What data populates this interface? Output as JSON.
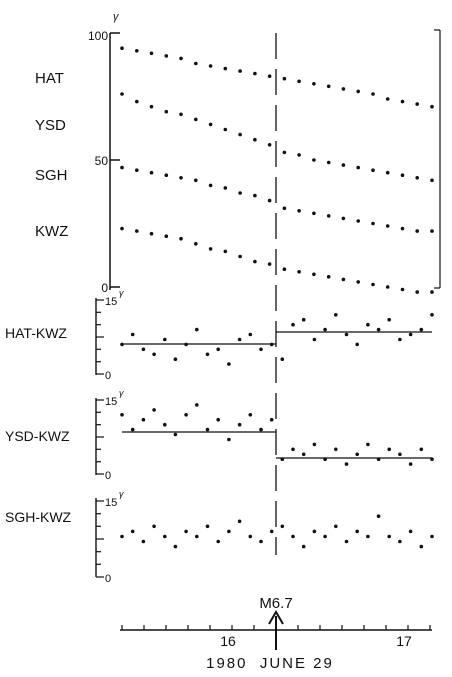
{
  "chart_data": [
    {
      "type": "scatter",
      "panel": "main",
      "ylim": [
        0,
        100
      ],
      "unit": "γ",
      "y_ticks": [
        "0",
        "50",
        "100"
      ],
      "series": [
        {
          "name": "HAT",
          "pre": [
            94,
            91,
            88,
            85
          ],
          "post": [
            82,
            79,
            76,
            72
          ],
          "values": [
            94,
            93,
            92,
            91,
            90,
            88,
            87,
            86,
            85,
            84,
            83,
            82,
            81,
            80,
            79,
            78,
            77,
            76,
            74,
            73,
            72,
            71
          ]
        },
        {
          "name": "YSD",
          "pre": [
            75,
            70,
            64,
            58
          ],
          "post": [
            53,
            49,
            46,
            43
          ],
          "values": [
            76,
            73,
            71,
            69,
            68,
            66,
            64,
            62,
            60,
            58,
            56,
            53,
            52,
            50,
            49,
            48,
            47,
            46,
            45,
            44,
            43,
            42
          ]
        },
        {
          "name": "SGH",
          "pre": [
            47,
            44,
            40,
            36
          ],
          "post": [
            31,
            28,
            25,
            22
          ],
          "values": [
            47,
            46,
            45,
            44,
            43,
            42,
            40,
            39,
            37,
            36,
            34,
            31,
            30,
            29,
            28,
            27,
            26,
            25,
            24,
            23,
            22,
            22
          ]
        },
        {
          "name": "KWZ",
          "pre": [
            23,
            20,
            15,
            10
          ],
          "post": [
            7,
            4,
            1,
            -2
          ],
          "values": [
            23,
            22,
            21,
            20,
            19,
            17,
            15,
            14,
            12,
            10,
            9,
            7,
            6,
            5,
            4,
            3,
            2,
            1,
            0,
            -1,
            -2,
            -2
          ]
        }
      ]
    },
    {
      "type": "scatter",
      "panel": "HAT-KWZ",
      "label": "HAT-KWZ",
      "ylim": [
        0,
        15
      ],
      "y_ticks": [
        "0",
        "15"
      ],
      "unit": "γ",
      "mean_before": 6,
      "mean_after": 8.5,
      "values": [
        6,
        8,
        5,
        4,
        7,
        3,
        6,
        9,
        4,
        5,
        2,
        7,
        8,
        5,
        6,
        3,
        10,
        11,
        7,
        9,
        12,
        8,
        6,
        10,
        9,
        11,
        7,
        8,
        9,
        12
      ]
    },
    {
      "type": "scatter",
      "panel": "YSD-KWZ",
      "label": "YSD-KWZ",
      "ylim": [
        0,
        15
      ],
      "y_ticks": [
        "0",
        "15"
      ],
      "unit": "γ",
      "mean_before": 10,
      "mean_after": 4.5,
      "values": [
        12,
        9,
        11,
        13,
        10,
        8,
        12,
        14,
        9,
        11,
        7,
        10,
        12,
        9,
        11,
        3,
        5,
        4,
        6,
        3,
        5,
        2,
        4,
        6,
        3,
        5,
        4,
        2,
        5,
        3
      ]
    },
    {
      "type": "scatter",
      "panel": "SGH-KWZ",
      "label": "SGH-KWZ",
      "ylim": [
        0,
        15
      ],
      "y_ticks": [
        "0",
        "15"
      ],
      "unit": "γ",
      "values": [
        8,
        9,
        7,
        10,
        8,
        6,
        9,
        8,
        10,
        7,
        9,
        11,
        8,
        7,
        9,
        10,
        8,
        6,
        9,
        8,
        10,
        7,
        9,
        8,
        12,
        8,
        7,
        9,
        6,
        8
      ]
    }
  ],
  "event": {
    "label": "M6.7"
  },
  "time_axis": {
    "ticks": [
      "16",
      "17"
    ],
    "caption": "1980  JUNE 29"
  },
  "colors": {
    "ink": "#111111",
    "background": "#ffffff"
  }
}
